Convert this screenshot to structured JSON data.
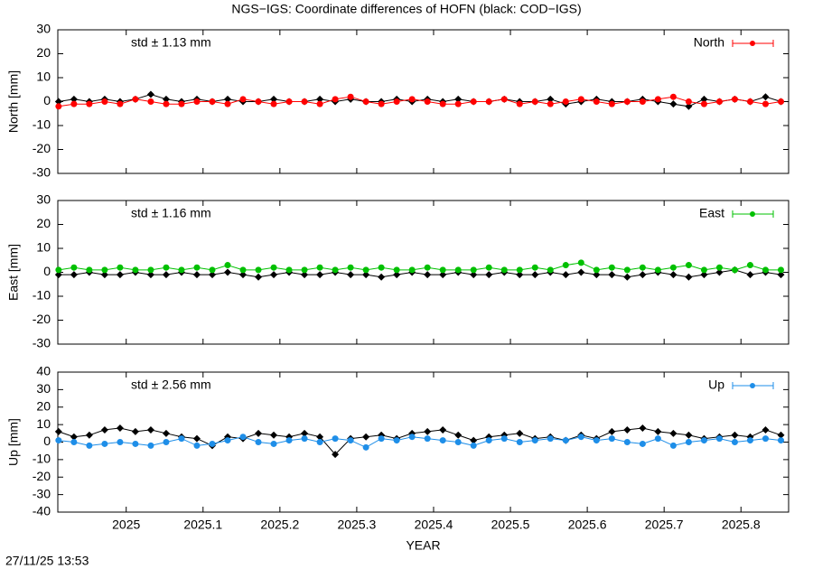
{
  "title": "NGS−IGS: Coordinate differences of HOFN (black: COD−IGS)",
  "timestamp": "27/11/25 13:53",
  "chart_data": [
    {
      "type": "scatter",
      "ylabel": "North [mm]",
      "annotation": "std ± 1.13 mm",
      "legend": "upper right",
      "xtick_labels": false,
      "xlim": [
        2024.911,
        2025.862
      ],
      "xticks": [
        2025,
        2025.1,
        2025.2,
        2025.3,
        2025.4,
        2025.5,
        2025.6,
        2025.7,
        2025.8
      ],
      "ylim": [
        -30,
        30
      ],
      "yticks": [
        -30,
        -20,
        -10,
        0,
        10,
        20,
        30
      ],
      "x": [
        2024.912,
        2024.932,
        2024.952,
        2024.972,
        2024.992,
        2025.012,
        2025.032,
        2025.052,
        2025.072,
        2025.092,
        2025.112,
        2025.132,
        2025.152,
        2025.172,
        2025.192,
        2025.212,
        2025.232,
        2025.252,
        2025.272,
        2025.292,
        2025.312,
        2025.332,
        2025.352,
        2025.372,
        2025.392,
        2025.412,
        2025.432,
        2025.452,
        2025.472,
        2025.492,
        2025.512,
        2025.532,
        2025.552,
        2025.572,
        2025.592,
        2025.612,
        2025.632,
        2025.652,
        2025.672,
        2025.692,
        2025.712,
        2025.732,
        2025.752,
        2025.772,
        2025.792,
        2025.812,
        2025.832,
        2025.852
      ],
      "series": [
        {
          "color": "#000000",
          "marker": "diamond",
          "values": [
            0,
            1,
            0,
            1,
            0,
            1,
            3,
            1,
            0,
            1,
            0,
            1,
            0,
            0,
            1,
            0,
            0,
            1,
            0,
            1,
            0,
            0,
            1,
            0,
            1,
            0,
            1,
            0,
            0,
            1,
            0,
            0,
            1,
            -1,
            0,
            1,
            0,
            0,
            1,
            0,
            -1,
            -2,
            1,
            0,
            1,
            0,
            2,
            0
          ]
        },
        {
          "name": "North",
          "color": "#ff0000",
          "marker": "circle",
          "values": [
            -2,
            -1,
            -1,
            0,
            -1,
            1,
            0,
            -1,
            -1,
            0,
            0,
            -1,
            1,
            0,
            -1,
            0,
            0,
            -1,
            1,
            2,
            0,
            -1,
            0,
            1,
            0,
            -1,
            -1,
            0,
            0,
            1,
            -1,
            0,
            -1,
            0,
            1,
            0,
            -1,
            0,
            0,
            1,
            2,
            0,
            -1,
            0,
            1,
            0,
            -1,
            0
          ]
        }
      ]
    },
    {
      "type": "scatter",
      "ylabel": "East [mm]",
      "annotation": "std ± 1.16 mm",
      "legend": "upper right",
      "xtick_labels": false,
      "xlim": [
        2024.911,
        2025.862
      ],
      "xticks": [
        2025,
        2025.1,
        2025.2,
        2025.3,
        2025.4,
        2025.5,
        2025.6,
        2025.7,
        2025.8
      ],
      "ylim": [
        -30,
        30
      ],
      "yticks": [
        -30,
        -20,
        -10,
        0,
        10,
        20,
        30
      ],
      "x": [
        2024.912,
        2024.932,
        2024.952,
        2024.972,
        2024.992,
        2025.012,
        2025.032,
        2025.052,
        2025.072,
        2025.092,
        2025.112,
        2025.132,
        2025.152,
        2025.172,
        2025.192,
        2025.212,
        2025.232,
        2025.252,
        2025.272,
        2025.292,
        2025.312,
        2025.332,
        2025.352,
        2025.372,
        2025.392,
        2025.412,
        2025.432,
        2025.452,
        2025.472,
        2025.492,
        2025.512,
        2025.532,
        2025.552,
        2025.572,
        2025.592,
        2025.612,
        2025.632,
        2025.652,
        2025.672,
        2025.692,
        2025.712,
        2025.732,
        2025.752,
        2025.772,
        2025.792,
        2025.812,
        2025.832,
        2025.852
      ],
      "series": [
        {
          "color": "#000000",
          "marker": "diamond",
          "values": [
            -1,
            -1,
            0,
            -1,
            -1,
            0,
            -1,
            -1,
            0,
            -1,
            -1,
            0,
            -1,
            -2,
            -1,
            0,
            -1,
            -1,
            0,
            -1,
            -1,
            -2,
            -1,
            0,
            -1,
            -1,
            0,
            -1,
            -1,
            0,
            -1,
            -1,
            0,
            -1,
            0,
            -1,
            -1,
            -2,
            -1,
            0,
            -1,
            -2,
            -1,
            0,
            1,
            -1,
            0,
            -1
          ]
        },
        {
          "name": "East",
          "color": "#00c000",
          "marker": "circle",
          "values": [
            1,
            2,
            1,
            1,
            2,
            1,
            1,
            2,
            1,
            2,
            1,
            3,
            1,
            1,
            2,
            1,
            1,
            2,
            1,
            2,
            1,
            2,
            1,
            1,
            2,
            1,
            1,
            1,
            2,
            1,
            1,
            2,
            1,
            3,
            4,
            1,
            2,
            1,
            2,
            1,
            2,
            3,
            1,
            2,
            1,
            3,
            1,
            1
          ]
        }
      ]
    },
    {
      "type": "scatter",
      "ylabel": "Up [mm]",
      "xlabel": "YEAR",
      "annotation": "std ± 2.56 mm",
      "legend": "upper right",
      "xtick_labels": true,
      "xlim": [
        2024.911,
        2025.862
      ],
      "xticks": [
        2025,
        2025.1,
        2025.2,
        2025.3,
        2025.4,
        2025.5,
        2025.6,
        2025.7,
        2025.8
      ],
      "ylim": [
        -40,
        40
      ],
      "yticks": [
        -40,
        -30,
        -20,
        -10,
        0,
        10,
        20,
        30,
        40
      ],
      "x": [
        2024.912,
        2024.932,
        2024.952,
        2024.972,
        2024.992,
        2025.012,
        2025.032,
        2025.052,
        2025.072,
        2025.092,
        2025.112,
        2025.132,
        2025.152,
        2025.172,
        2025.192,
        2025.212,
        2025.232,
        2025.252,
        2025.272,
        2025.292,
        2025.312,
        2025.332,
        2025.352,
        2025.372,
        2025.392,
        2025.412,
        2025.432,
        2025.452,
        2025.472,
        2025.492,
        2025.512,
        2025.532,
        2025.552,
        2025.572,
        2025.592,
        2025.612,
        2025.632,
        2025.652,
        2025.672,
        2025.692,
        2025.712,
        2025.732,
        2025.752,
        2025.772,
        2025.792,
        2025.812,
        2025.832,
        2025.852
      ],
      "series": [
        {
          "color": "#000000",
          "marker": "diamond",
          "values": [
            6,
            3,
            4,
            7,
            8,
            6,
            7,
            5,
            3,
            2,
            -2,
            3,
            2,
            5,
            4,
            3,
            5,
            3,
            -7,
            2,
            3,
            4,
            2,
            5,
            6,
            7,
            4,
            1,
            3,
            4,
            5,
            2,
            3,
            1,
            4,
            2,
            6,
            7,
            8,
            6,
            5,
            4,
            2,
            3,
            4,
            3,
            7,
            4
          ]
        },
        {
          "name": "Up",
          "color": "#1e8ee8",
          "marker": "circle",
          "values": [
            1,
            0,
            -2,
            -1,
            0,
            -1,
            -2,
            0,
            2,
            -2,
            -1,
            1,
            3,
            0,
            -1,
            1,
            2,
            0,
            2,
            1,
            -3,
            2,
            1,
            3,
            2,
            1,
            0,
            -2,
            1,
            2,
            0,
            1,
            2,
            1,
            3,
            1,
            2,
            0,
            -1,
            2,
            -2,
            0,
            1,
            2,
            0,
            1,
            2,
            1
          ]
        }
      ]
    }
  ]
}
